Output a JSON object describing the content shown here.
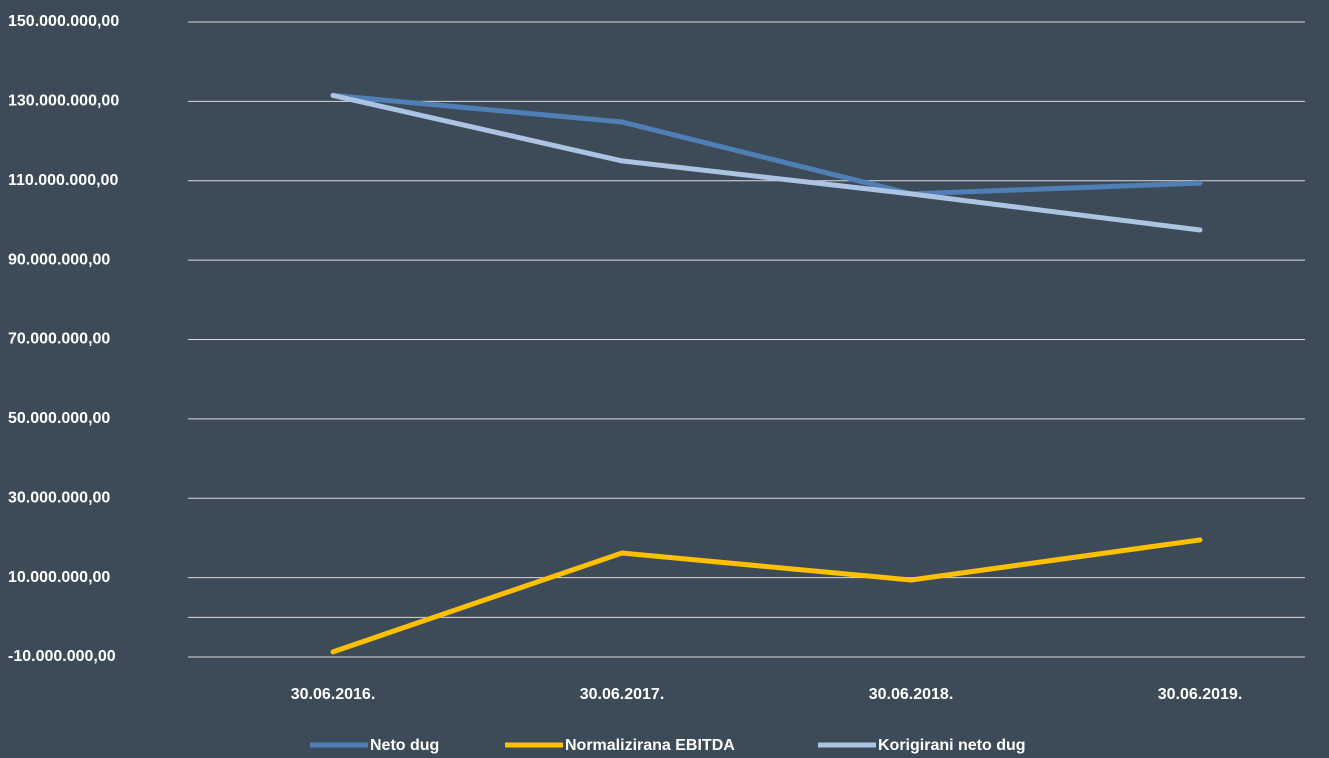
{
  "chart_data": {
    "type": "line",
    "categories": [
      "30.06.2016.",
      "30.06.2017.",
      "30.06.2018.",
      "30.06.2019."
    ],
    "series": [
      {
        "name": "Neto dug",
        "color": "#4f7fb5",
        "values": [
          131500000,
          124800000,
          106700000,
          109400000
        ]
      },
      {
        "name": "Normalizirana EBITDA",
        "color": "#ffc000",
        "values": [
          -8700000,
          16200000,
          9400000,
          19500000
        ]
      },
      {
        "name": "Korigirani neto dug",
        "color": "#adc3e3",
        "values": [
          131500000,
          115000000,
          106700000,
          97600000
        ]
      }
    ],
    "ylim": [
      -10000000,
      150000000
    ],
    "yticks": [
      {
        "value": -10000000,
        "label": "-10.000.000,00"
      },
      {
        "value": 10000000,
        "label": "10.000.000,00"
      },
      {
        "value": 30000000,
        "label": "30.000.000,00"
      },
      {
        "value": 50000000,
        "label": "50.000.000,00"
      },
      {
        "value": 70000000,
        "label": "70.000.000,00"
      },
      {
        "value": 90000000,
        "label": "90.000.000,00"
      },
      {
        "value": 110000000,
        "label": "110.000.000,00"
      },
      {
        "value": 130000000,
        "label": "130.000.000,00"
      },
      {
        "value": 150000000,
        "label": "150.000.000,00"
      }
    ],
    "grid": true,
    "legend": "bottom"
  }
}
